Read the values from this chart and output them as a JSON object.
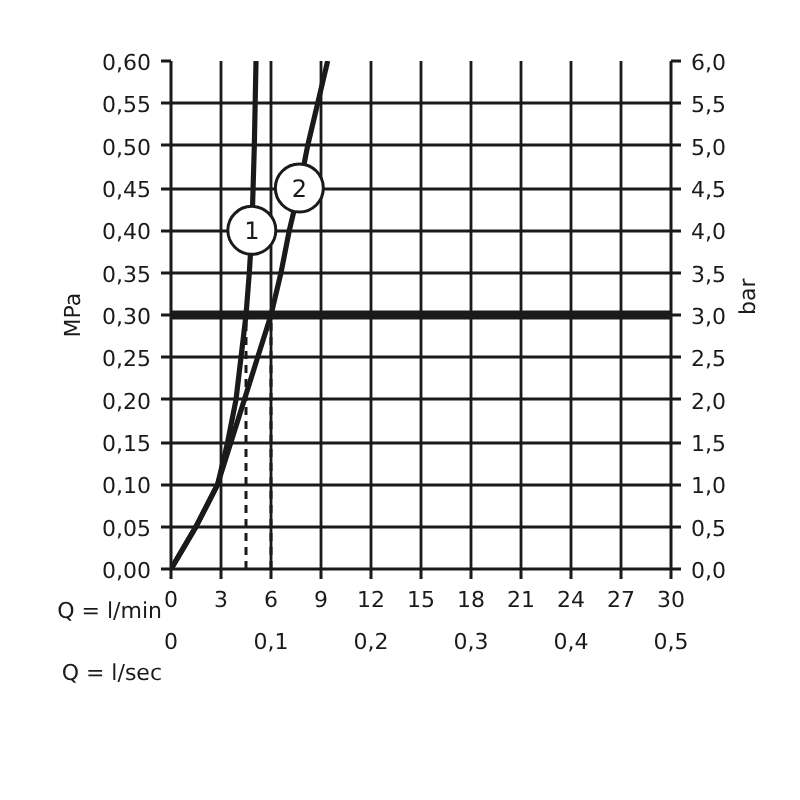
{
  "chart_data": {
    "type": "line",
    "xlabel": "Q = l/min",
    "x2label": "Q = l/sec",
    "ylabel": "MPa",
    "y2label": "bar",
    "xlim": [
      0,
      30
    ],
    "xticks": [
      0,
      3,
      6,
      9,
      12,
      15,
      18,
      21,
      24,
      27,
      30
    ],
    "x2lim": [
      0,
      0.5
    ],
    "x2ticks": [
      0,
      {
        "value": 0.1,
        "label": "0,1"
      },
      {
        "value": 0.2,
        "label": "0,2"
      },
      {
        "value": 0.3,
        "label": "0,3"
      },
      {
        "value": 0.4,
        "label": "0,4"
      },
      {
        "value": 0.5,
        "label": "0,5"
      }
    ],
    "ylim": [
      0,
      0.6
    ],
    "yticks": [
      {
        "value": 0,
        "label": "0,00"
      },
      {
        "value": 0.05,
        "label": "0,05"
      },
      {
        "value": 0.1,
        "label": "0,10"
      },
      {
        "value": 0.15,
        "label": "0,15"
      },
      {
        "value": 0.2,
        "label": "0,20"
      },
      {
        "value": 0.25,
        "label": "0,25"
      },
      {
        "value": 0.3,
        "label": "0,30"
      },
      {
        "value": 0.35,
        "label": "0,35"
      },
      {
        "value": 0.4,
        "label": "0,40"
      },
      {
        "value": 0.45,
        "label": "0,45"
      },
      {
        "value": 0.5,
        "label": "0,50"
      },
      {
        "value": 0.55,
        "label": "0,55"
      },
      {
        "value": 0.6,
        "label": "0,60"
      }
    ],
    "y2lim": [
      0,
      6
    ],
    "y2ticks": [
      {
        "value": 0,
        "label": "0,0"
      },
      {
        "value": 0.5,
        "label": "0,5"
      },
      {
        "value": 1,
        "label": "1,0"
      },
      {
        "value": 1.5,
        "label": "1,5"
      },
      {
        "value": 2,
        "label": "2,0"
      },
      {
        "value": 2.5,
        "label": "2,5"
      },
      {
        "value": 3,
        "label": "3,0"
      },
      {
        "value": 3.5,
        "label": "3,5"
      },
      {
        "value": 4,
        "label": "4,0"
      },
      {
        "value": 4.5,
        "label": "4,5"
      },
      {
        "value": 5,
        "label": "5,0"
      },
      {
        "value": 5.5,
        "label": "5,5"
      },
      {
        "value": 6,
        "label": "6,0"
      }
    ],
    "series": [
      {
        "name": "1",
        "color": "#1a1a1a",
        "x": [
          0,
          1.5,
          2.8,
          3.4,
          3.9,
          4.2,
          4.5,
          4.7,
          4.85,
          5.0,
          5.1
        ],
        "values": [
          0,
          0.05,
          0.1,
          0.15,
          0.2,
          0.25,
          0.3,
          0.35,
          0.4,
          0.5,
          0.6
        ]
      },
      {
        "name": "2",
        "color": "#1a1a1a",
        "x": [
          0,
          1.5,
          2.8,
          3.6,
          4.4,
          5.2,
          6.0,
          6.6,
          7.1,
          7.7,
          8.2,
          8.8,
          9.4
        ],
        "values": [
          0,
          0.05,
          0.1,
          0.15,
          0.2,
          0.25,
          0.3,
          0.35,
          0.4,
          0.45,
          0.5,
          0.55,
          0.6
        ]
      }
    ],
    "ref_lines": [
      {
        "axis": "y",
        "value": 0.3,
        "color": "#1a1a1a",
        "line_style": "solid"
      },
      {
        "axis": "x",
        "value": 4.5,
        "color": "#1a1a1a",
        "line_style": "dashed"
      },
      {
        "axis": "x",
        "value": 6.0,
        "color": "#1a1a1a",
        "line_style": "dashed"
      }
    ],
    "grid": true,
    "marker": "none",
    "line_style": "solid"
  }
}
